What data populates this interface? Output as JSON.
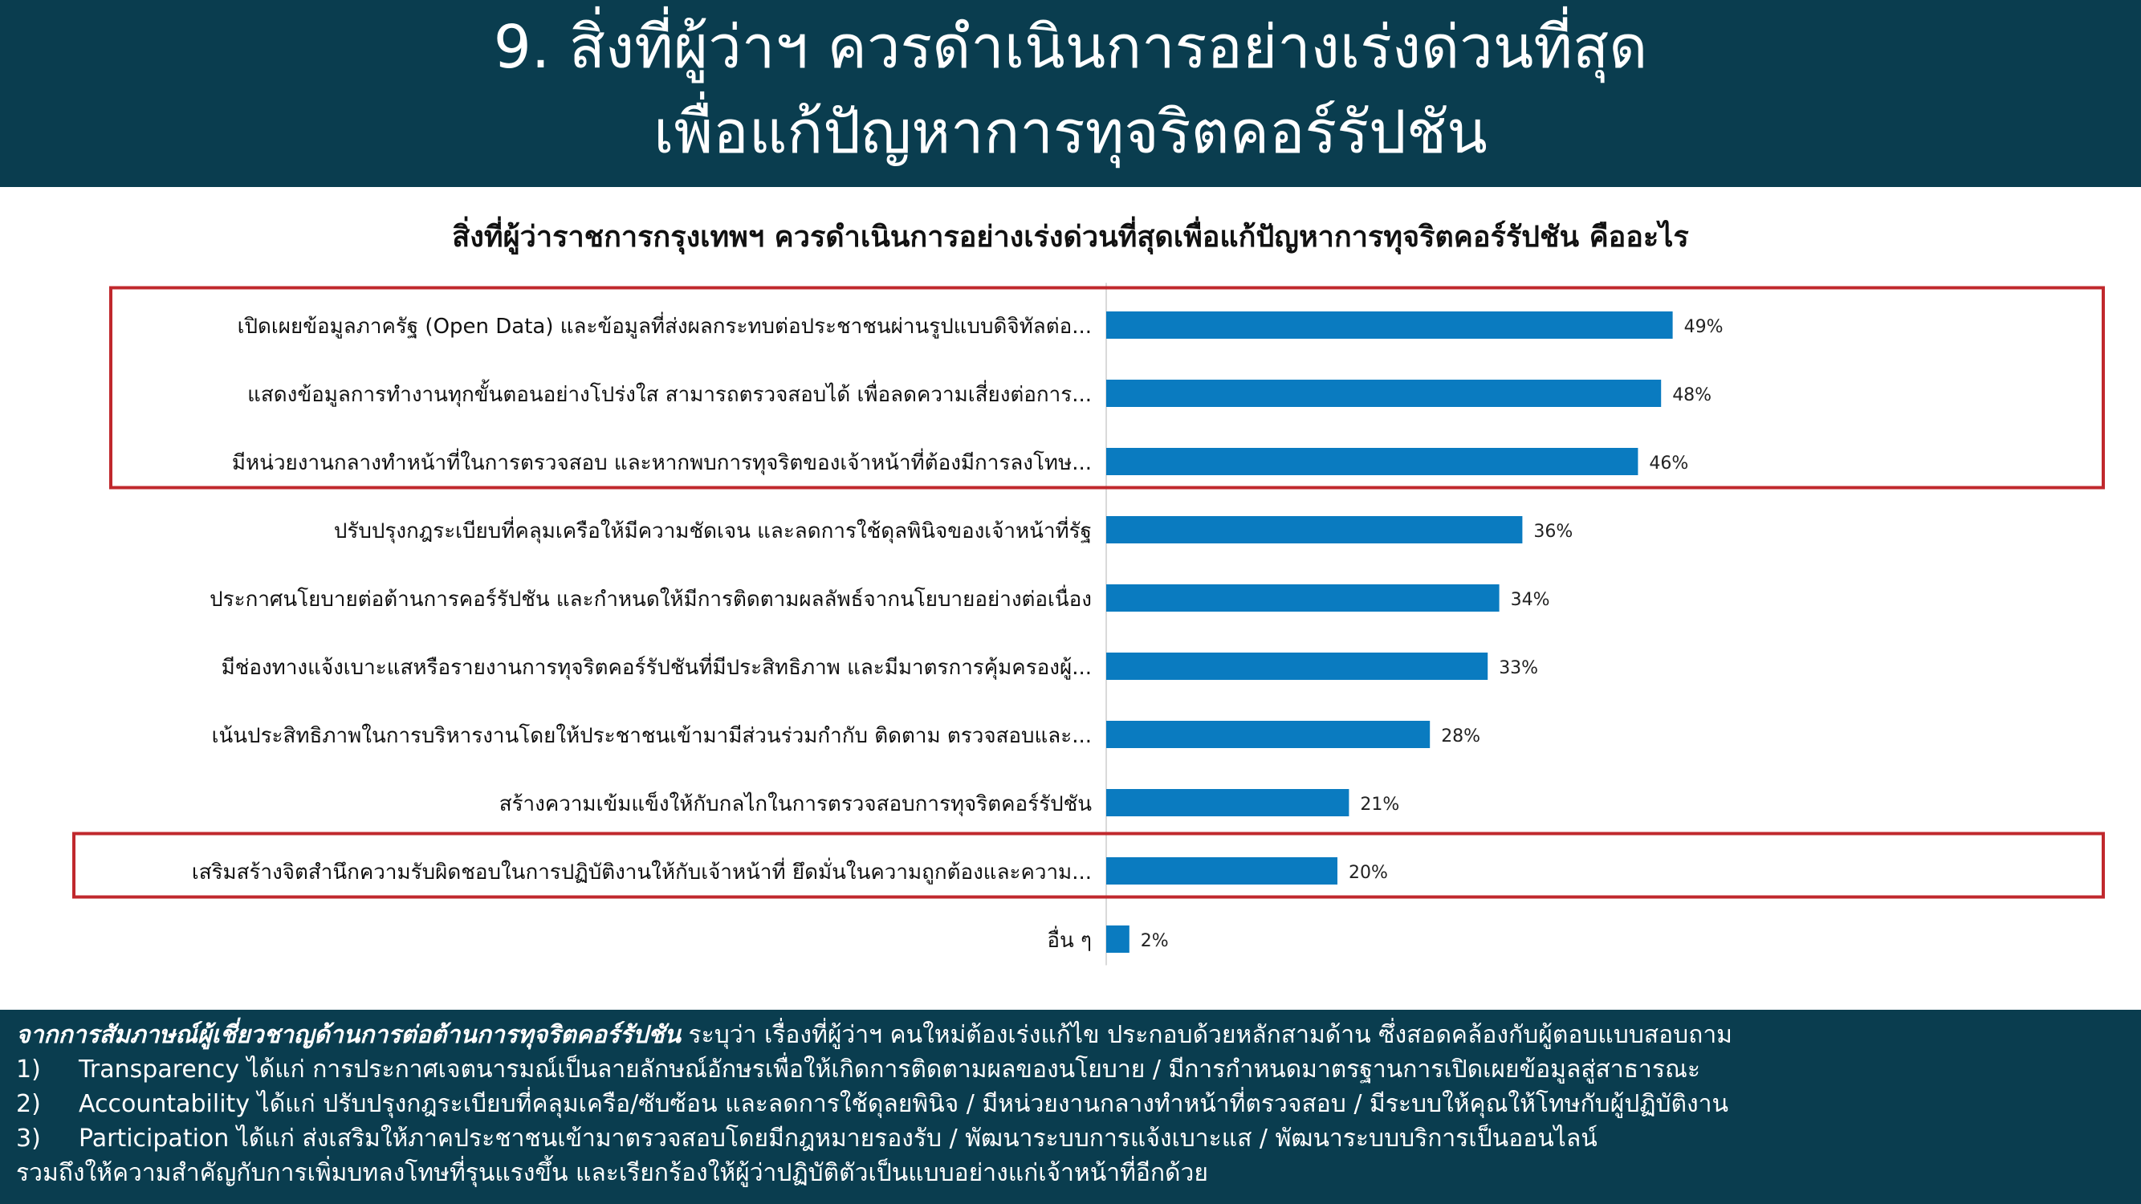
{
  "header": {
    "title_line1": "9. สิ่งที่ผู้ว่าฯ ควรดำเนินการอย่างเร่งด่วนที่สุด",
    "title_line2": "เพื่อแก้ปัญหาการทุจริตคอร์รัปชัน"
  },
  "chart_data": {
    "type": "bar",
    "orientation": "horizontal",
    "title": "สิ่งที่ผู้ว่าราชการกรุงเทพฯ ควรดำเนินการอย่างเร่งด่วนที่สุดเพื่อแก้ปัญหาการทุจริตคอร์รัปชัน คืออะไร",
    "categories": [
      "เปิดเผยข้อมูลภาครัฐ (Open Data) และข้อมูลที่ส่งผลกระทบต่อประชาชนผ่านรูปแบบดิจิทัลต่อ...",
      "แสดงข้อมูลการทำงานทุกขั้นตอนอย่างโปร่งใส สามารถตรวจสอบได้ เพื่อลดความเสี่ยงต่อการ...",
      "มีหน่วยงานกลางทำหน้าที่ในการตรวจสอบ และหากพบการทุจริตของเจ้าหน้าที่ต้องมีการลงโทษ...",
      "ปรับปรุงกฎระเบียบที่คลุมเครือให้มีความชัดเจน และลดการใช้ดุลพินิจของเจ้าหน้าที่รัฐ",
      "ประกาศนโยบายต่อต้านการคอร์รัปชัน และกำหนดให้มีการติดตามผลลัพธ์จากนโยบายอย่างต่อเนื่อง",
      "มีช่องทางแจ้งเบาะแสหรือรายงานการทุจริตคอร์รัปชันที่มีประสิทธิภาพ และมีมาตรการคุ้มครองผู้...",
      "เน้นประสิทธิภาพในการบริหารงานโดยให้ประชาชนเข้ามามีส่วนร่วมกำกับ ติดตาม ตรวจสอบและ...",
      "สร้างความเข้มแข็งให้กับกลไกในการตรวจสอบการทุจริตคอร์รัปชัน",
      "เสริมสร้างจิตสำนึกความรับผิดชอบในการปฏิบัติงานให้กับเจ้าหน้าที่ ยึดมั่นในความถูกต้องและความ...",
      "อื่น ๆ"
    ],
    "values": [
      49,
      48,
      46,
      36,
      34,
      33,
      28,
      21,
      20,
      2
    ],
    "value_labels": [
      "49%",
      "48%",
      "46%",
      "36%",
      "34%",
      "33%",
      "28%",
      "21%",
      "20%",
      "2%"
    ],
    "xlim": [
      0,
      65
    ],
    "bar_color": "#0a7bc0",
    "highlight_color": "#c0282d",
    "highlight_groups": [
      [
        0,
        1,
        2
      ],
      [
        8
      ]
    ]
  },
  "footer": {
    "intro_lead": "จากการสัมภาษณ์ผู้เชี่ยวชาญด้านการต่อต้านการทุจริตคอร์รัปชัน",
    "intro_rest": " ระบุว่า เรื่องที่ผู้ว่าฯ คนใหม่ต้องเร่งแก้ไข ประกอบด้วยหลักสามด้าน ซึ่งสอดคล้องกับผู้ตอบแบบสอบถาม",
    "items": [
      {
        "num": "1)",
        "text": "Transparency ได้แก่ การประกาศเจตนารมณ์เป็นลายลักษณ์อักษรเพื่อให้เกิดการติดตามผลของนโยบาย / มีการกำหนดมาตรฐานการเปิดเผยข้อมูลสู่สาธารณะ"
      },
      {
        "num": "2)",
        "text": "Accountability ได้แก่ ปรับปรุงกฎระเบียบที่คลุมเครือ/ซับซ้อน และลดการใช้ดุลยพินิจ / มีหน่วยงานกลางทำหน้าที่ตรวจสอบ / มีระบบให้คุณให้โทษกับผู้ปฏิบัติงาน"
      },
      {
        "num": "3)",
        "text": "Participation ได้แก่ ส่งเสริมให้ภาคประชาชนเข้ามาตรวจสอบโดยมีกฎหมายรองรับ / พัฒนาระบบการแจ้งเบาะแส / พัฒนาระบบบริการเป็นออนไลน์"
      }
    ],
    "closing": "รวมถึงให้ความสำคัญกับการเพิ่มบทลงโทษที่รุนแรงขึ้น และเรียกร้องให้ผู้ว่าปฏิบัติตัวเป็นแบบอย่างแก่เจ้าหน้าที่อีกด้วย"
  }
}
